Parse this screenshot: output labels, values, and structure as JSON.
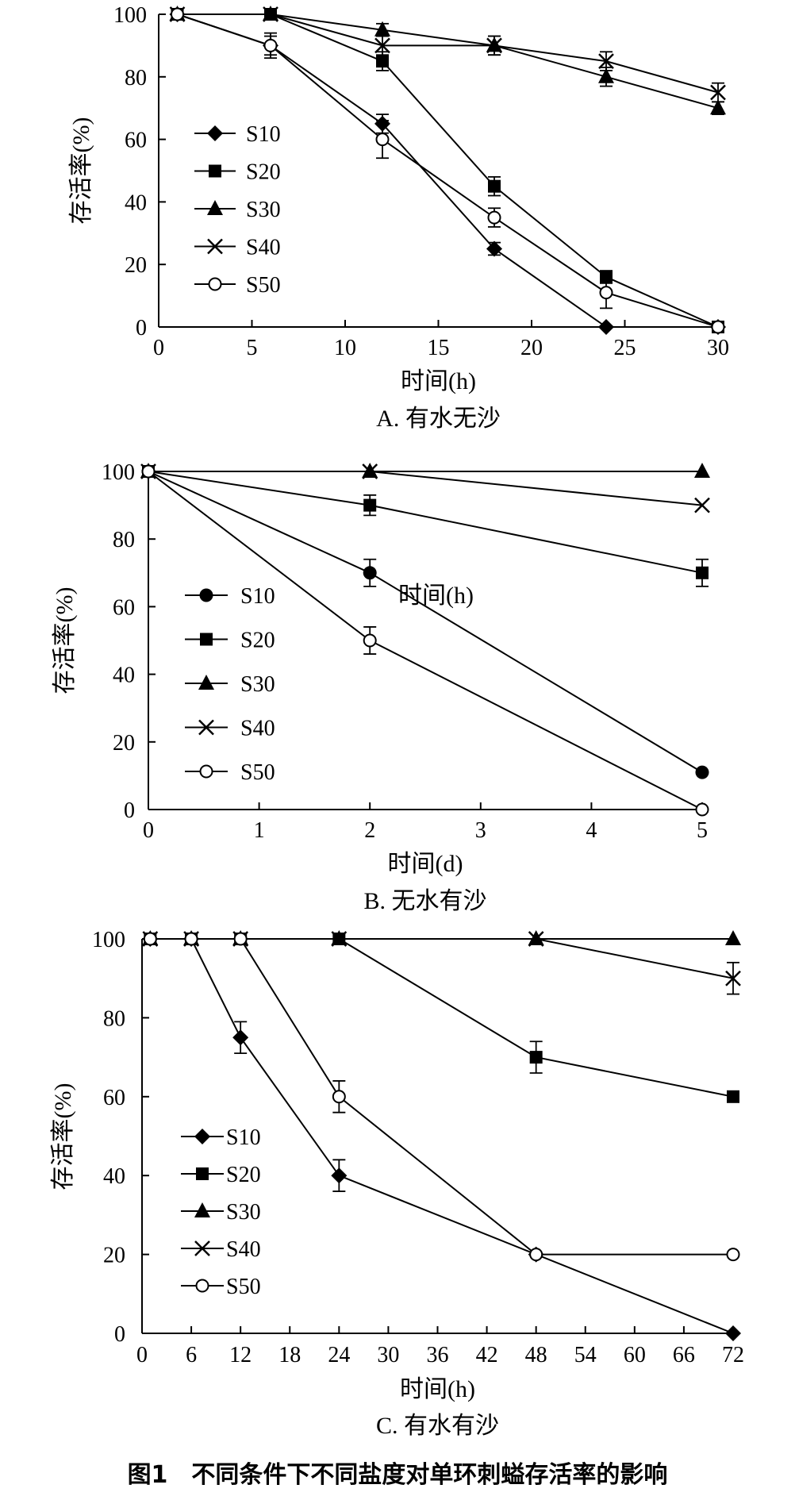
{
  "figure_caption": "图1　不同条件下不同盐度对单环刺螠存活率的影响",
  "chart_data": [
    {
      "type": "line",
      "panel": "A",
      "subtitle": "A. 有水无沙",
      "xlabel": "时间(h)",
      "ylabel": "存活率(%)",
      "xlim": [
        0,
        30
      ],
      "ylim": [
        0,
        100
      ],
      "xticks": [
        0,
        5,
        10,
        15,
        20,
        25,
        30
      ],
      "yticks": [
        0,
        20,
        40,
        60,
        80,
        100
      ],
      "grid": false,
      "legend_position": "left",
      "series": [
        {
          "name": "S10",
          "marker": "diamond",
          "x": [
            1,
            6,
            12,
            18,
            24,
            30
          ],
          "y": [
            100,
            90,
            65,
            25,
            0,
            0
          ],
          "err": [
            0,
            3,
            3,
            2,
            0,
            0
          ]
        },
        {
          "name": "S20",
          "marker": "square",
          "x": [
            1,
            6,
            12,
            18,
            24,
            30
          ],
          "y": [
            100,
            100,
            85,
            45,
            16,
            0
          ],
          "err": [
            0,
            0,
            3,
            3,
            2,
            0
          ]
        },
        {
          "name": "S30",
          "marker": "triangle",
          "x": [
            1,
            6,
            12,
            18,
            24,
            30
          ],
          "y": [
            100,
            100,
            95,
            90,
            80,
            70
          ],
          "err": [
            0,
            0,
            2,
            3,
            3,
            2
          ]
        },
        {
          "name": "S40",
          "marker": "x",
          "x": [
            1,
            6,
            12,
            18,
            24,
            30
          ],
          "y": [
            100,
            100,
            90,
            90,
            85,
            75
          ],
          "err": [
            0,
            0,
            3,
            3,
            3,
            3
          ]
        },
        {
          "name": "S50",
          "marker": "circle",
          "x": [
            1,
            6,
            12,
            18,
            24,
            30
          ],
          "y": [
            100,
            90,
            60,
            35,
            11,
            0
          ],
          "err": [
            0,
            4,
            6,
            3,
            5,
            0
          ]
        }
      ]
    },
    {
      "type": "line",
      "panel": "B",
      "subtitle": "B. 无水有沙",
      "xlabel": "时间(d)",
      "ylabel": "存活率(%)",
      "annotation": "时间(h)",
      "xlim": [
        0,
        5
      ],
      "ylim": [
        0,
        100
      ],
      "xticks": [
        0,
        1,
        2,
        3,
        4,
        5
      ],
      "yticks": [
        0,
        20,
        40,
        60,
        80,
        100
      ],
      "grid": false,
      "legend_position": "left",
      "series": [
        {
          "name": "S10",
          "marker": "circle-filled",
          "x": [
            0,
            2,
            5
          ],
          "y": [
            100,
            70,
            11
          ],
          "err": [
            0,
            4,
            0
          ]
        },
        {
          "name": "S20",
          "marker": "square",
          "x": [
            0,
            2,
            5
          ],
          "y": [
            100,
            90,
            70
          ],
          "err": [
            0,
            3,
            4
          ]
        },
        {
          "name": "S30",
          "marker": "triangle",
          "x": [
            0,
            2,
            5
          ],
          "y": [
            100,
            100,
            100
          ],
          "err": [
            0,
            0,
            0
          ]
        },
        {
          "name": "S40",
          "marker": "x",
          "x": [
            0,
            2,
            5
          ],
          "y": [
            100,
            100,
            90
          ],
          "err": [
            0,
            0,
            0
          ]
        },
        {
          "name": "S50",
          "marker": "circle",
          "x": [
            0,
            2,
            5
          ],
          "y": [
            100,
            50,
            0
          ],
          "err": [
            0,
            4,
            0
          ]
        }
      ]
    },
    {
      "type": "line",
      "panel": "C",
      "subtitle": "C. 有水有沙",
      "xlabel": "时间(h)",
      "ylabel": "存活率(%)",
      "xlim": [
        0,
        72
      ],
      "ylim": [
        0,
        100
      ],
      "xticks": [
        0,
        6,
        12,
        18,
        24,
        30,
        36,
        42,
        48,
        54,
        60,
        66,
        72
      ],
      "yticks": [
        0,
        20,
        40,
        60,
        80,
        100
      ],
      "grid": false,
      "legend_position": "left",
      "series": [
        {
          "name": "S10",
          "marker": "diamond",
          "x": [
            1,
            6,
            12,
            24,
            48,
            72
          ],
          "y": [
            100,
            100,
            75,
            40,
            20,
            0
          ],
          "err": [
            0,
            0,
            4,
            4,
            0,
            0
          ]
        },
        {
          "name": "S20",
          "marker": "square",
          "x": [
            1,
            6,
            12,
            24,
            48,
            72
          ],
          "y": [
            100,
            100,
            100,
            100,
            70,
            60
          ],
          "err": [
            0,
            0,
            0,
            0,
            4,
            0
          ]
        },
        {
          "name": "S30",
          "marker": "triangle",
          "x": [
            1,
            6,
            12,
            24,
            48,
            72
          ],
          "y": [
            100,
            100,
            100,
            100,
            100,
            100
          ],
          "err": [
            0,
            0,
            0,
            0,
            0,
            0
          ]
        },
        {
          "name": "S40",
          "marker": "x",
          "x": [
            1,
            6,
            12,
            24,
            48,
            72
          ],
          "y": [
            100,
            100,
            100,
            100,
            100,
            90
          ],
          "err": [
            0,
            0,
            0,
            0,
            0,
            4
          ]
        },
        {
          "name": "S50",
          "marker": "circle",
          "x": [
            1,
            6,
            12,
            24,
            48,
            72
          ],
          "y": [
            100,
            100,
            100,
            60,
            20,
            20
          ],
          "err": [
            0,
            0,
            0,
            4,
            0,
            0
          ]
        }
      ]
    }
  ]
}
